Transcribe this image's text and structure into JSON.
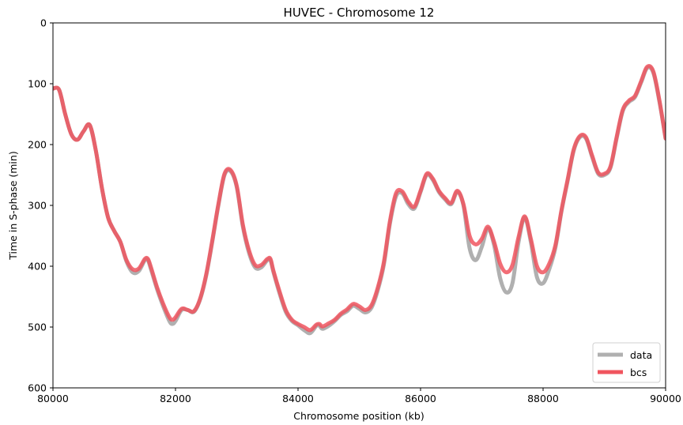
{
  "chart_data": {
    "type": "line",
    "title": "HUVEC - Chromosome 12",
    "xlabel": "Chromosome position (kb)",
    "ylabel": "Time in S-phase (min)",
    "xlim": [
      80000,
      90000
    ],
    "ylim": [
      600,
      0
    ],
    "y_inverted": true,
    "xticks": [
      "80000",
      "82000",
      "84000",
      "86000",
      "88000",
      "90000"
    ],
    "yticks": [
      "0",
      "100",
      "200",
      "300",
      "400",
      "500",
      "600"
    ],
    "grid": false,
    "legend_position": "lower-right",
    "series": [
      {
        "name": "data",
        "color": "#b0b0b0",
        "points": [
          [
            80000,
            108
          ],
          [
            80100,
            110
          ],
          [
            80200,
            150
          ],
          [
            80300,
            183
          ],
          [
            80400,
            192
          ],
          [
            80500,
            178
          ],
          [
            80600,
            168
          ],
          [
            80700,
            210
          ],
          [
            80800,
            272
          ],
          [
            80900,
            320
          ],
          [
            81000,
            342
          ],
          [
            81100,
            360
          ],
          [
            81200,
            392
          ],
          [
            81300,
            410
          ],
          [
            81400,
            408
          ],
          [
            81500,
            390
          ],
          [
            81550,
            390
          ],
          [
            81600,
            405
          ],
          [
            81700,
            438
          ],
          [
            81800,
            466
          ],
          [
            81900,
            490
          ],
          [
            81950,
            495
          ],
          [
            82000,
            490
          ],
          [
            82100,
            472
          ],
          [
            82200,
            472
          ],
          [
            82300,
            475
          ],
          [
            82400,
            455
          ],
          [
            82500,
            416
          ],
          [
            82600,
            360
          ],
          [
            82700,
            300
          ],
          [
            82800,
            250
          ],
          [
            82900,
            244
          ],
          [
            83000,
            270
          ],
          [
            83100,
            335
          ],
          [
            83200,
            378
          ],
          [
            83300,
            402
          ],
          [
            83400,
            402
          ],
          [
            83500,
            390
          ],
          [
            83550,
            390
          ],
          [
            83600,
            410
          ],
          [
            83700,
            445
          ],
          [
            83800,
            475
          ],
          [
            83900,
            490
          ],
          [
            84000,
            497
          ],
          [
            84100,
            505
          ],
          [
            84200,
            510
          ],
          [
            84300,
            498
          ],
          [
            84350,
            498
          ],
          [
            84400,
            503
          ],
          [
            84500,
            498
          ],
          [
            84600,
            490
          ],
          [
            84700,
            480
          ],
          [
            84800,
            474
          ],
          [
            84900,
            465
          ],
          [
            85000,
            470
          ],
          [
            85100,
            476
          ],
          [
            85200,
            468
          ],
          [
            85300,
            440
          ],
          [
            85400,
            398
          ],
          [
            85500,
            330
          ],
          [
            85600,
            285
          ],
          [
            85700,
            280
          ],
          [
            85800,
            298
          ],
          [
            85900,
            305
          ],
          [
            86000,
            278
          ],
          [
            86100,
            250
          ],
          [
            86200,
            258
          ],
          [
            86300,
            278
          ],
          [
            86400,
            290
          ],
          [
            86500,
            298
          ],
          [
            86600,
            278
          ],
          [
            86700,
            300
          ],
          [
            86800,
            370
          ],
          [
            86900,
            390
          ],
          [
            87000,
            368
          ],
          [
            87100,
            338
          ],
          [
            87200,
            365
          ],
          [
            87300,
            420
          ],
          [
            87400,
            443
          ],
          [
            87500,
            428
          ],
          [
            87600,
            360
          ],
          [
            87700,
            320
          ],
          [
            87800,
            360
          ],
          [
            87900,
            418
          ],
          [
            88000,
            428
          ],
          [
            88100,
            405
          ],
          [
            88200,
            370
          ],
          [
            88300,
            310
          ],
          [
            88400,
            260
          ],
          [
            88500,
            210
          ],
          [
            88600,
            188
          ],
          [
            88700,
            190
          ],
          [
            88800,
            220
          ],
          [
            88900,
            248
          ],
          [
            89000,
            250
          ],
          [
            89100,
            238
          ],
          [
            89200,
            190
          ],
          [
            89300,
            145
          ],
          [
            89400,
            130
          ],
          [
            89500,
            122
          ],
          [
            89600,
            98
          ],
          [
            89700,
            74
          ],
          [
            89800,
            82
          ],
          [
            89900,
            130
          ],
          [
            90000,
            190
          ]
        ]
      },
      {
        "name": "bcs",
        "color": "#f0555f",
        "points": [
          [
            80000,
            108
          ],
          [
            80100,
            110
          ],
          [
            80200,
            150
          ],
          [
            80300,
            183
          ],
          [
            80400,
            192
          ],
          [
            80500,
            178
          ],
          [
            80600,
            168
          ],
          [
            80700,
            210
          ],
          [
            80800,
            272
          ],
          [
            80900,
            320
          ],
          [
            81000,
            342
          ],
          [
            81100,
            360
          ],
          [
            81200,
            390
          ],
          [
            81300,
            405
          ],
          [
            81400,
            404
          ],
          [
            81500,
            388
          ],
          [
            81550,
            388
          ],
          [
            81600,
            402
          ],
          [
            81700,
            435
          ],
          [
            81800,
            462
          ],
          [
            81900,
            484
          ],
          [
            81950,
            488
          ],
          [
            82000,
            484
          ],
          [
            82100,
            470
          ],
          [
            82200,
            472
          ],
          [
            82300,
            474
          ],
          [
            82400,
            454
          ],
          [
            82500,
            414
          ],
          [
            82600,
            358
          ],
          [
            82700,
            298
          ],
          [
            82800,
            248
          ],
          [
            82900,
            242
          ],
          [
            83000,
            268
          ],
          [
            83100,
            332
          ],
          [
            83200,
            374
          ],
          [
            83300,
            398
          ],
          [
            83400,
            398
          ],
          [
            83500,
            388
          ],
          [
            83550,
            388
          ],
          [
            83600,
            408
          ],
          [
            83700,
            442
          ],
          [
            83800,
            472
          ],
          [
            83900,
            488
          ],
          [
            84000,
            495
          ],
          [
            84100,
            500
          ],
          [
            84200,
            505
          ],
          [
            84300,
            496
          ],
          [
            84350,
            495
          ],
          [
            84400,
            499
          ],
          [
            84500,
            494
          ],
          [
            84600,
            488
          ],
          [
            84700,
            478
          ],
          [
            84800,
            471
          ],
          [
            84900,
            462
          ],
          [
            85000,
            466
          ],
          [
            85100,
            472
          ],
          [
            85200,
            464
          ],
          [
            85300,
            436
          ],
          [
            85400,
            394
          ],
          [
            85500,
            326
          ],
          [
            85600,
            280
          ],
          [
            85700,
            277
          ],
          [
            85800,
            294
          ],
          [
            85900,
            302
          ],
          [
            86000,
            276
          ],
          [
            86100,
            248
          ],
          [
            86200,
            256
          ],
          [
            86300,
            276
          ],
          [
            86400,
            288
          ],
          [
            86500,
            296
          ],
          [
            86600,
            276
          ],
          [
            86700,
            298
          ],
          [
            86800,
            350
          ],
          [
            86900,
            364
          ],
          [
            87000,
            355
          ],
          [
            87100,
            335
          ],
          [
            87200,
            360
          ],
          [
            87300,
            396
          ],
          [
            87400,
            410
          ],
          [
            87500,
            398
          ],
          [
            87600,
            352
          ],
          [
            87700,
            318
          ],
          [
            87800,
            355
          ],
          [
            87900,
            400
          ],
          [
            88000,
            410
          ],
          [
            88100,
            396
          ],
          [
            88200,
            366
          ],
          [
            88300,
            308
          ],
          [
            88400,
            258
          ],
          [
            88500,
            208
          ],
          [
            88600,
            186
          ],
          [
            88700,
            188
          ],
          [
            88800,
            218
          ],
          [
            88900,
            246
          ],
          [
            89000,
            248
          ],
          [
            89100,
            236
          ],
          [
            89200,
            188
          ],
          [
            89300,
            143
          ],
          [
            89400,
            128
          ],
          [
            89500,
            120
          ],
          [
            89600,
            96
          ],
          [
            89700,
            72
          ],
          [
            89800,
            80
          ],
          [
            89900,
            128
          ],
          [
            90000,
            190
          ]
        ]
      }
    ]
  }
}
